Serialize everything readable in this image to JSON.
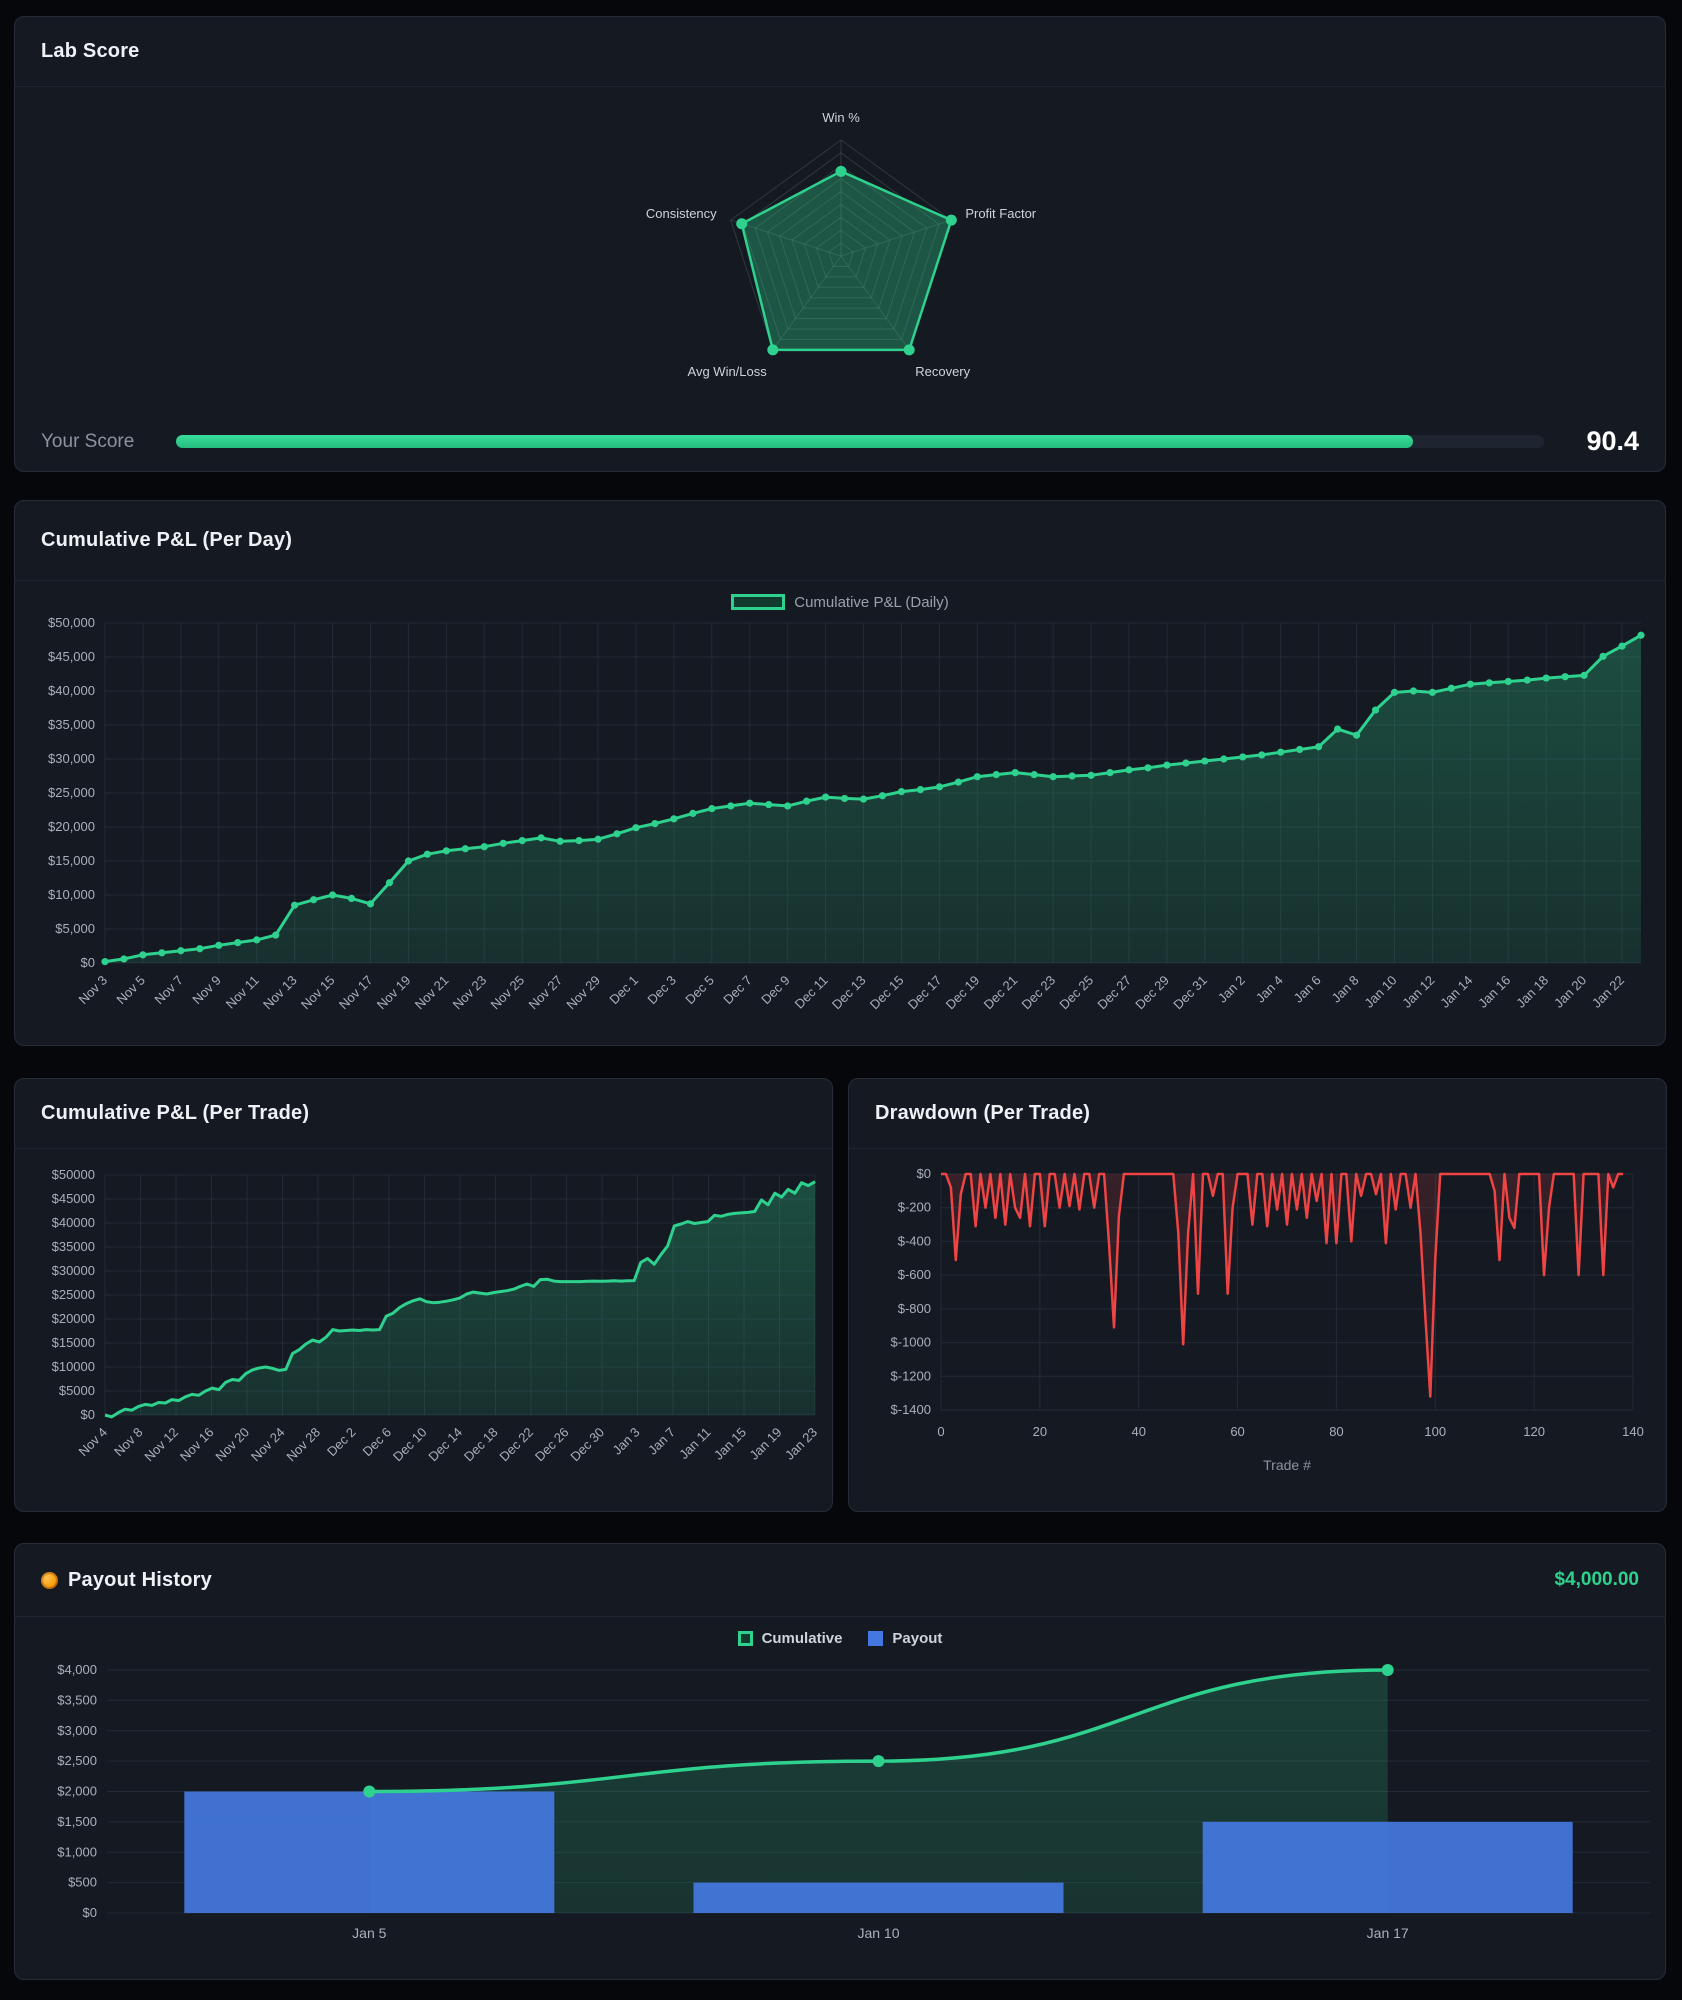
{
  "colors": {
    "page_bg": "#05070a",
    "panel_bg": "#151a22",
    "accent_green": "#2ed28e",
    "accent_red": "#ee4444",
    "accent_blue": "#4478e0",
    "axis_text": "#a9b0bb",
    "muted_text": "#8b93a1",
    "grid": "#232937"
  },
  "chart_data": [
    {
      "id": "radar",
      "type": "radar",
      "title": "Lab Score",
      "axes": [
        "Win %",
        "Profit Factor",
        "Recovery",
        "Avg Win/Loss",
        "Consistency"
      ],
      "values": [
        73,
        100,
        100,
        100,
        90
      ],
      "max": 100,
      "rings": 9,
      "score": {
        "label": "Your Score",
        "value": "90.4",
        "pct": 90.4
      }
    },
    {
      "id": "pnl-day",
      "type": "area",
      "title": "Cumulative P&L (Per Day)",
      "legend": "Cumulative P&L (Daily)",
      "ylim": [
        0,
        50000
      ],
      "ytick_labels": [
        "$0",
        "$5,000",
        "$10,000",
        "$15,000",
        "$20,000",
        "$25,000",
        "$30,000",
        "$35,000",
        "$40,000",
        "$45,000",
        "$50,000"
      ],
      "x_labels": [
        "Nov 3",
        "Nov 5",
        "Nov 7",
        "Nov 9",
        "Nov 11",
        "Nov 13",
        "Nov 15",
        "Nov 17",
        "Nov 19",
        "Nov 21",
        "Nov 23",
        "Nov 25",
        "Nov 27",
        "Nov 29",
        "Dec 1",
        "Dec 3",
        "Dec 5",
        "Dec 7",
        "Dec 9",
        "Dec 11",
        "Dec 13",
        "Dec 15",
        "Dec 17",
        "Dec 19",
        "Dec 21",
        "Dec 23",
        "Dec 25",
        "Dec 27",
        "Dec 29",
        "Dec 31",
        "Jan 2",
        "Jan 4",
        "Jan 6",
        "Jan 8",
        "Jan 10",
        "Jan 12",
        "Jan 14",
        "Jan 16",
        "Jan 18",
        "Jan 20",
        "Jan 22"
      ],
      "label_every": 2,
      "values": [
        200,
        600,
        1200,
        1500,
        1800,
        2100,
        2600,
        3000,
        3400,
        4100,
        8500,
        9300,
        10000,
        9500,
        8700,
        11800,
        15000,
        16000,
        16500,
        16800,
        17100,
        17600,
        18000,
        18400,
        17900,
        18000,
        18200,
        19000,
        19900,
        20500,
        21200,
        22000,
        22700,
        23100,
        23500,
        23300,
        23100,
        23800,
        24400,
        24200,
        24100,
        24600,
        25200,
        25500,
        25900,
        26600,
        27400,
        27700,
        28000,
        27700,
        27400,
        27500,
        27600,
        28000,
        28400,
        28700,
        29100,
        29400,
        29700,
        30000,
        30300,
        30600,
        31000,
        31400,
        31800,
        34400,
        33500,
        37200,
        39800,
        40000,
        39800,
        40400,
        41000,
        41200,
        41400,
        41600,
        41900,
        42100,
        42300,
        45100,
        46600,
        48200
      ]
    },
    {
      "id": "pnl-trade",
      "type": "area",
      "title": "Cumulative P&L (Per Trade)",
      "ylim": [
        0,
        50000
      ],
      "ytick_labels": [
        "$0",
        "$5000",
        "$10000",
        "$15000",
        "$20000",
        "$25000",
        "$30000",
        "$35000",
        "$40000",
        "$45000",
        "$50000"
      ],
      "x_labels": [
        "Nov 4",
        "Nov 8",
        "Nov 12",
        "Nov 16",
        "Nov 20",
        "Nov 24",
        "Nov 28",
        "Dec 2",
        "Dec 6",
        "Dec 10",
        "Dec 14",
        "Dec 18",
        "Dec 22",
        "Dec 26",
        "Dec 30",
        "Jan 3",
        "Jan 7",
        "Jan 11",
        "Jan 15",
        "Jan 19",
        "Jan 23"
      ],
      "values": [
        0,
        -400,
        500,
        1200,
        1000,
        1800,
        2200,
        2000,
        2600,
        2500,
        3200,
        3000,
        3800,
        4300,
        4100,
        5000,
        5600,
        5300,
        6800,
        7400,
        7200,
        8600,
        9400,
        9800,
        10000,
        9700,
        9300,
        9500,
        12800,
        13600,
        14800,
        15600,
        15200,
        16200,
        17800,
        17500,
        17600,
        17700,
        17600,
        17800,
        17700,
        17800,
        20600,
        21200,
        22400,
        23200,
        23800,
        24200,
        23600,
        23400,
        23500,
        23700,
        24000,
        24400,
        25200,
        25600,
        25400,
        25200,
        25500,
        25700,
        25900,
        26200,
        26800,
        27300,
        26800,
        28200,
        28300,
        27900,
        27800,
        27800,
        27800,
        27800,
        27850,
        27900,
        27850,
        27900,
        27950,
        27900,
        27950,
        28000,
        31800,
        32600,
        31400,
        33400,
        35200,
        39400,
        39800,
        40300,
        39900,
        40100,
        40300,
        41600,
        41400,
        41800,
        42000,
        42100,
        42200,
        42400,
        44800,
        43800,
        46200,
        45400,
        47000,
        46200,
        48400,
        47800,
        48600
      ]
    },
    {
      "id": "drawdown",
      "type": "line",
      "title": "Drawdown (Per Trade)",
      "xlabel": "Trade #",
      "ylim": [
        -1400,
        0
      ],
      "ytick_labels": [
        "$0",
        "$-200",
        "$-400",
        "$-600",
        "$-800",
        "$-1000",
        "$-1200",
        "$-1400"
      ],
      "xtick_labels": [
        "0",
        "20",
        "40",
        "60",
        "80",
        "100",
        "120",
        "140"
      ],
      "xmax": 140,
      "values": [
        0,
        0,
        -80,
        -510,
        -120,
        0,
        0,
        -310,
        0,
        -200,
        0,
        -260,
        0,
        -300,
        0,
        -200,
        -260,
        0,
        -310,
        0,
        0,
        -310,
        0,
        0,
        -200,
        0,
        -190,
        0,
        -210,
        0,
        0,
        -200,
        0,
        0,
        -420,
        -910,
        -250,
        0,
        0,
        0,
        0,
        0,
        0,
        0,
        0,
        0,
        0,
        0,
        -350,
        -1010,
        -350,
        0,
        -710,
        0,
        0,
        -130,
        0,
        0,
        -710,
        -200,
        0,
        0,
        0,
        -300,
        0,
        0,
        -310,
        0,
        -210,
        0,
        -300,
        0,
        -210,
        0,
        -260,
        0,
        -160,
        0,
        -410,
        0,
        -410,
        0,
        0,
        -400,
        0,
        -130,
        0,
        0,
        -120,
        0,
        -410,
        0,
        -210,
        0,
        0,
        -200,
        0,
        -350,
        -850,
        -1320,
        -500,
        0,
        0,
        0,
        0,
        0,
        0,
        0,
        0,
        0,
        0,
        0,
        -100,
        -510,
        0,
        -260,
        -320,
        0,
        0,
        0,
        0,
        0,
        -600,
        -200,
        0,
        0,
        0,
        0,
        0,
        -600,
        0,
        0,
        0,
        0,
        -600,
        0,
        -80,
        0,
        0
      ]
    },
    {
      "id": "payout",
      "type": "bar+line",
      "title": "Payout History",
      "total": "$4,000.00",
      "legend": [
        "Cumulative",
        "Payout"
      ],
      "categories": [
        "Jan 5",
        "Jan 10",
        "Jan 17"
      ],
      "bars": [
        2000,
        500,
        1500
      ],
      "line": [
        2000,
        2500,
        4000
      ],
      "ylim": [
        0,
        4000
      ],
      "ytick_labels": [
        "$0",
        "$500",
        "$1,000",
        "$1,500",
        "$2,000",
        "$2,500",
        "$3,000",
        "$3,500",
        "$4,000"
      ]
    }
  ]
}
